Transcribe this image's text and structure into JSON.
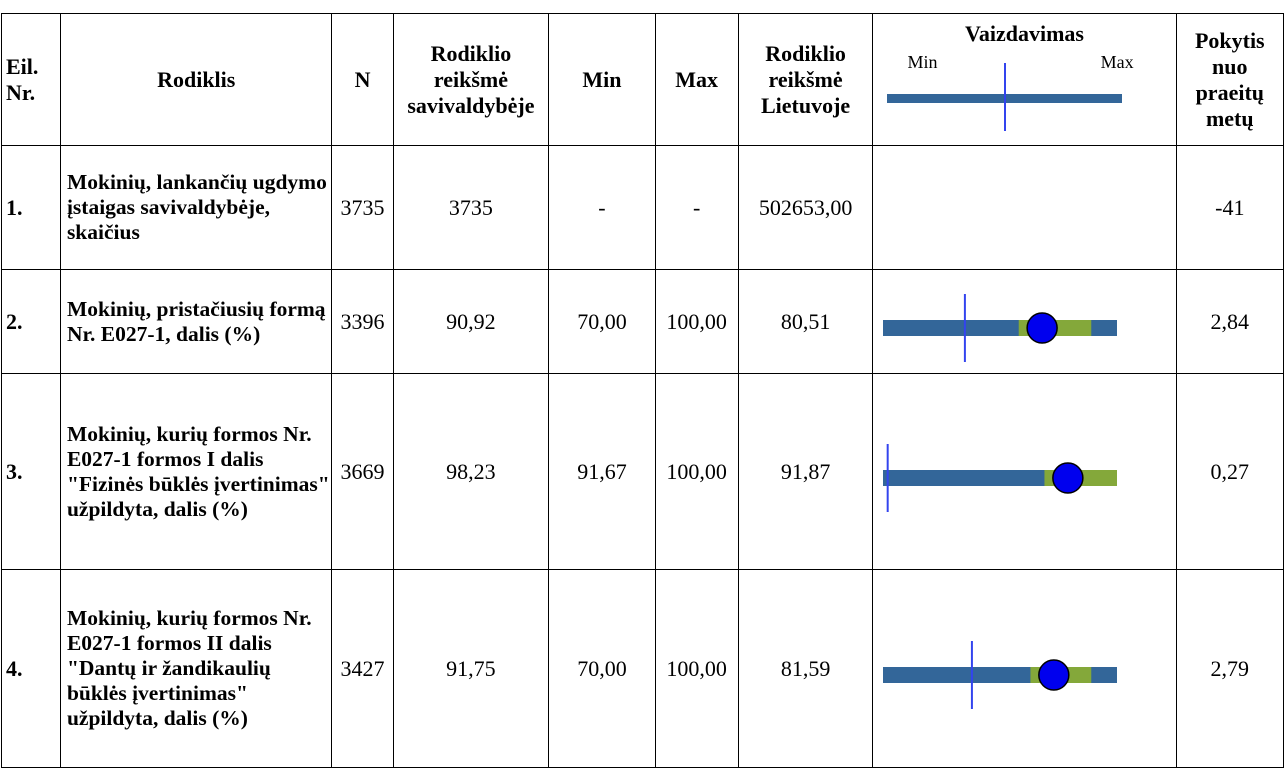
{
  "headers": {
    "nr": "Eil. Nr.",
    "name": "Rodiklis",
    "n": "N",
    "value": "Rodiklio reikšmė savivaldybėje",
    "min": "Min",
    "max": "Max",
    "lt": "Rodiklio reikšmė Lietuvoje",
    "viz": "Vaizdavimas",
    "viz_min": "Min",
    "viz_max": "Max",
    "change": "Pokytis nuo praeitų metų"
  },
  "colors": {
    "bar": "#336699",
    "range": "#84a83a",
    "marker": "#0000ee",
    "line": "#3344ee"
  },
  "rows": [
    {
      "nr": "1.",
      "name": "Mokinių, lankančių ugdymo įstaigas savivaldybėje, skaičius",
      "n": "3735",
      "value": "3735",
      "min": "-",
      "max": "-",
      "lt": "502653,00",
      "change": "-41",
      "viz": null
    },
    {
      "nr": "2.",
      "name": "Mokinių, pristačiusių formą Nr. E027-1, dalis (%)",
      "n": "3396",
      "value": "90,92",
      "min": "70,00",
      "max": "100,00",
      "lt": "80,51",
      "change": "2,84",
      "viz": {
        "lt_frac": 0.35,
        "range_from": 0.58,
        "range_to": 0.89,
        "value_frac": 0.68
      }
    },
    {
      "nr": "3.",
      "name": "Mokinių, kurių formos Nr. E027-1 formos I dalis \"Fizinės būklės įvertinimas\" užpildyta, dalis (%)",
      "n": "3669",
      "value": "98,23",
      "min": "91,67",
      "max": "100,00",
      "lt": "91,87",
      "change": "0,27",
      "viz": {
        "lt_frac": 0.02,
        "range_from": 0.69,
        "range_to": 1.0,
        "value_frac": 0.79
      }
    },
    {
      "nr": "4.",
      "name": "Mokinių, kurių formos Nr. E027-1 formos II dalis \"Dantų ir žandikaulių būklės įvertinimas\" užpildyta, dalis (%)",
      "n": "3427",
      "value": "91,75",
      "min": "70,00",
      "max": "100,00",
      "lt": "81,59",
      "change": "2,79",
      "viz": {
        "lt_frac": 0.38,
        "range_from": 0.63,
        "range_to": 0.89,
        "value_frac": 0.73
      }
    }
  ]
}
